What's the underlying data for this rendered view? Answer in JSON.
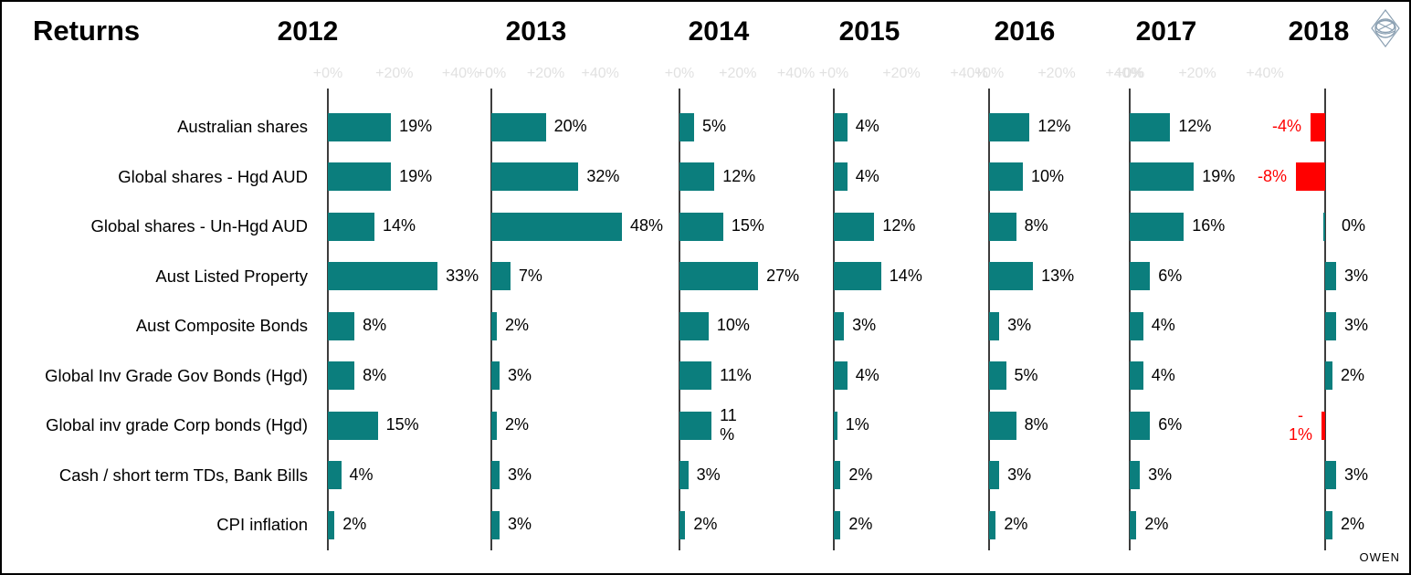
{
  "title": "Returns",
  "watermark": "OWEN",
  "logo": "diamond-swirl-logo",
  "colors": {
    "positive_bar": "#0b7e7d",
    "negative_bar": "#ff0000",
    "negative_text": "#ff0000",
    "axis": "#3d3d3d",
    "tick_text": "#e1e1e1",
    "text": "#000000"
  },
  "chart_data": {
    "type": "bar",
    "orientation": "horizontal",
    "title": "Returns",
    "value_suffix": "%",
    "axis_tick_labels": [
      "+0%",
      "+20%",
      "+40%"
    ],
    "axis_range_pct": [
      0,
      40
    ],
    "grid": false,
    "legend": "none",
    "categories": [
      "Australian shares",
      "Global shares - Hgd AUD",
      "Global shares - Un-Hgd AUD",
      "Aust Listed Property",
      "Aust Composite Bonds",
      "Global Inv Grade Gov Bonds (Hgd)",
      "Global inv grade Corp bonds (Hgd)",
      "Cash / short term TDs, Bank Bills",
      "CPI inflation"
    ],
    "series": [
      {
        "name": "2012",
        "values": [
          19,
          19,
          14,
          33,
          8,
          8,
          15,
          4,
          2
        ],
        "labels": [
          "19%",
          "19%",
          "14%",
          "33%",
          "8%",
          "8%",
          "15%",
          "4%",
          "2%"
        ],
        "show_ticks": true
      },
      {
        "name": "2013",
        "values": [
          20,
          32,
          48,
          7,
          2,
          3,
          2,
          3,
          3
        ],
        "labels": [
          "20%",
          "32%",
          "48%",
          "7%",
          "2%",
          "3%",
          "2%",
          "3%",
          "3%"
        ],
        "show_ticks": true
      },
      {
        "name": "2014",
        "values": [
          5,
          12,
          15,
          27,
          10,
          11,
          11,
          3,
          2
        ],
        "labels": [
          "5%",
          "12%",
          "15%",
          "27%",
          "10%",
          "11%",
          "11\n%",
          "3%",
          "2%"
        ],
        "show_ticks": true
      },
      {
        "name": "2015",
        "values": [
          4,
          4,
          12,
          14,
          3,
          4,
          1,
          2,
          2
        ],
        "labels": [
          "4%",
          "4%",
          "12%",
          "14%",
          "3%",
          "4%",
          "1%",
          "2%",
          "2%"
        ],
        "show_ticks": true
      },
      {
        "name": "2016",
        "values": [
          12,
          10,
          8,
          13,
          3,
          5,
          8,
          3,
          2
        ],
        "labels": [
          "12%",
          "10%",
          "8%",
          "13%",
          "3%",
          "5%",
          "8%",
          "3%",
          "2%"
        ],
        "show_ticks": true
      },
      {
        "name": "2017",
        "values": [
          12,
          19,
          16,
          6,
          4,
          4,
          6,
          3,
          2
        ],
        "labels": [
          "12%",
          "19%",
          "16%",
          "6%",
          "4%",
          "4%",
          "6%",
          "3%",
          "2%"
        ],
        "show_ticks": true
      },
      {
        "name": "2018",
        "values": [
          -4,
          -8,
          0,
          3,
          3,
          2,
          -1,
          3,
          2
        ],
        "labels": [
          "-4%",
          "-8%",
          "0%",
          "3%",
          "3%",
          "2%",
          "-\n1%",
          "3%",
          "2%"
        ],
        "show_ticks": false
      }
    ]
  }
}
